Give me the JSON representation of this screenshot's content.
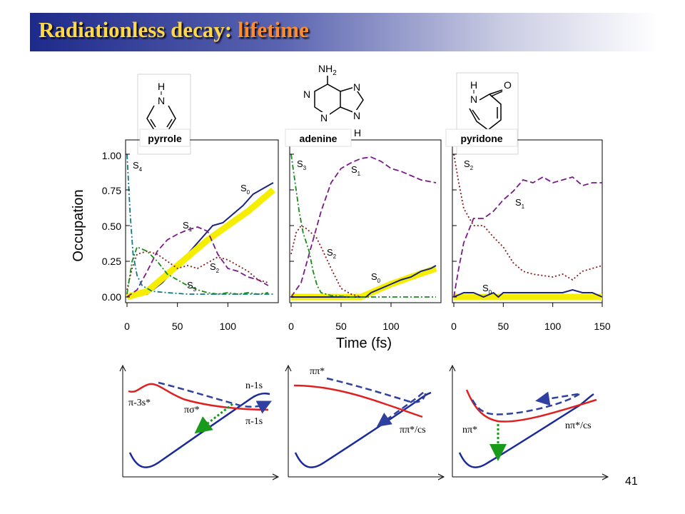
{
  "slide": {
    "title_main": "Radiationless decay:",
    "title_accent": "lifetime",
    "page_number": "41",
    "colors": {
      "title_text": "#ffd84a",
      "title_accent": "#ff8c2a",
      "title_band": "#1e2a8a",
      "potential_upper": "#e02020",
      "potential_ground": "#1a2a9a",
      "path_dashed": "#3040a0",
      "arrow_green": "#1a9a1a"
    }
  },
  "molecules": {
    "pyrrole": {
      "H": "H",
      "N": "N"
    },
    "adenine": {
      "NH2": "NH",
      "sub2": "2",
      "N": "N",
      "H": "H"
    },
    "pyridone": {
      "H": "H",
      "N": "N",
      "O": "O"
    }
  },
  "shared_axes": {
    "ylabel": "Occupation",
    "xlabel": "Time (fs)",
    "yticks": [
      "0.00",
      "0.25",
      "0.50",
      "0.75",
      "1.00"
    ]
  },
  "chart_data": [
    {
      "type": "line",
      "molecule": "pyrrole",
      "xticks": [
        "0",
        "50",
        "100"
      ],
      "xlim": [
        0,
        150
      ],
      "ylim": [
        0,
        1.05
      ],
      "state_labels": [
        {
          "state": "S",
          "sub": "4"
        },
        {
          "state": "S",
          "sub": "0"
        },
        {
          "state": "S",
          "sub": "1"
        },
        {
          "state": "S",
          "sub": "2"
        },
        {
          "state": "S",
          "sub": "3"
        }
      ],
      "series": [
        {
          "key": "S0",
          "color": "#1a237e",
          "style": "solid",
          "x": [
            0,
            20,
            35,
            45,
            55,
            65,
            75,
            85,
            95,
            105,
            115,
            125,
            135,
            145
          ],
          "y": [
            0,
            0.02,
            0.1,
            0.18,
            0.26,
            0.34,
            0.42,
            0.5,
            0.52,
            0.58,
            0.64,
            0.72,
            0.76,
            0.8
          ]
        },
        {
          "key": "S0-band",
          "color": "#f5ee00",
          "style": "band",
          "x": [
            0,
            20,
            40,
            60,
            80,
            100,
            120,
            140,
            145
          ],
          "y": [
            0,
            0.04,
            0.16,
            0.28,
            0.4,
            0.5,
            0.6,
            0.72,
            0.75
          ]
        },
        {
          "key": "S1",
          "color": "#7a1a8a",
          "style": "dashed",
          "x": [
            0,
            10,
            20,
            30,
            40,
            50,
            60,
            70,
            80,
            90,
            100,
            110,
            120,
            130,
            140
          ],
          "y": [
            0,
            0.05,
            0.18,
            0.32,
            0.4,
            0.44,
            0.47,
            0.49,
            0.46,
            0.3,
            0.2,
            0.18,
            0.14,
            0.12,
            0.08
          ]
        },
        {
          "key": "S2",
          "color": "#8a1a1a",
          "style": "dotted",
          "x": [
            0,
            5,
            10,
            20,
            30,
            40,
            50,
            60,
            70,
            80,
            90,
            100,
            110,
            120,
            130,
            140
          ],
          "y": [
            0.05,
            0.2,
            0.3,
            0.32,
            0.3,
            0.25,
            0.2,
            0.22,
            0.2,
            0.24,
            0.28,
            0.26,
            0.22,
            0.18,
            0.12,
            0.1
          ]
        },
        {
          "key": "S3",
          "color": "#1a8a1a",
          "style": "dashdot",
          "x": [
            0,
            5,
            10,
            20,
            30,
            40,
            50,
            60,
            70,
            80,
            90,
            100,
            110,
            120,
            130,
            140
          ],
          "y": [
            0.02,
            0.25,
            0.35,
            0.32,
            0.25,
            0.16,
            0.12,
            0.08,
            0.05,
            0.03,
            0.02,
            0.03,
            0.02,
            0.03,
            0.02,
            0.03
          ]
        },
        {
          "key": "S4",
          "color": "#0f7a8a",
          "style": "dashdot",
          "x": [
            0,
            3,
            6,
            10,
            15,
            25,
            40,
            60,
            80,
            100,
            120,
            145
          ],
          "y": [
            1.0,
            0.6,
            0.3,
            0.15,
            0.08,
            0.04,
            0.03,
            0.02,
            0.02,
            0.02,
            0.02,
            0.02
          ]
        }
      ]
    },
    {
      "type": "line",
      "molecule": "adenine",
      "xticks": [
        "0",
        "50",
        "100"
      ],
      "xlim": [
        0,
        150
      ],
      "ylim": [
        0,
        1.05
      ],
      "state_labels": [
        {
          "state": "S",
          "sub": "3"
        },
        {
          "state": "S",
          "sub": "1"
        },
        {
          "state": "S",
          "sub": "2"
        },
        {
          "state": "S",
          "sub": "0"
        }
      ],
      "series": [
        {
          "key": "S0-band",
          "color": "#f5ee00",
          "style": "band",
          "x": [
            0,
            70,
            80,
            100,
            120,
            145
          ],
          "y": [
            0,
            0,
            0.03,
            0.09,
            0.14,
            0.2
          ]
        },
        {
          "key": "S0",
          "color": "#1a237e",
          "style": "solid",
          "x": [
            0,
            75,
            80,
            90,
            100,
            110,
            120,
            130,
            140,
            145
          ],
          "y": [
            0,
            0,
            0.03,
            0.06,
            0.09,
            0.12,
            0.14,
            0.18,
            0.2,
            0.22
          ]
        },
        {
          "key": "S1",
          "color": "#7a1a8a",
          "style": "dashed",
          "x": [
            0,
            10,
            20,
            30,
            40,
            50,
            60,
            70,
            80,
            90,
            100,
            110,
            120,
            130,
            145
          ],
          "y": [
            0,
            0.1,
            0.35,
            0.6,
            0.8,
            0.9,
            0.94,
            0.97,
            0.98,
            0.95,
            0.9,
            0.88,
            0.85,
            0.82,
            0.8
          ]
        },
        {
          "key": "S2",
          "color": "#8a1a1a",
          "style": "dotted",
          "x": [
            0,
            5,
            10,
            15,
            20,
            25,
            30,
            40,
            50,
            60,
            70
          ],
          "y": [
            0.3,
            0.45,
            0.5,
            0.48,
            0.45,
            0.42,
            0.35,
            0.2,
            0.06,
            0.02,
            0
          ]
        },
        {
          "key": "S3",
          "color": "#1a8a1a",
          "style": "dashdot",
          "x": [
            0,
            3,
            8,
            12,
            18,
            22,
            26,
            30,
            40,
            60,
            145
          ],
          "y": [
            1.0,
            0.85,
            0.6,
            0.45,
            0.32,
            0.18,
            0.08,
            0.03,
            0.01,
            0,
            0
          ]
        }
      ]
    },
    {
      "type": "line",
      "molecule": "pyridone",
      "xticks": [
        "0",
        "50",
        "100",
        "150"
      ],
      "xlim": [
        0,
        150
      ],
      "ylim": [
        0,
        1.05
      ],
      "state_labels": [
        {
          "state": "S",
          "sub": "2"
        },
        {
          "state": "S",
          "sub": "1"
        },
        {
          "state": "S",
          "sub": "0"
        }
      ],
      "series": [
        {
          "key": "S0-band",
          "color": "#f5ee00",
          "style": "band",
          "x": [
            0,
            150
          ],
          "y": [
            0,
            0
          ]
        },
        {
          "key": "S0",
          "color": "#1a237e",
          "style": "solid",
          "x": [
            0,
            10,
            20,
            30,
            40,
            45,
            50,
            60,
            70,
            80,
            90,
            100,
            110,
            120,
            130,
            140,
            150
          ],
          "y": [
            0,
            0.03,
            0.03,
            0,
            0.03,
            0,
            0.03,
            0.03,
            0.03,
            0.03,
            0.03,
            0.03,
            0.03,
            0.05,
            0.03,
            0.03,
            0
          ]
        },
        {
          "key": "S1",
          "color": "#7a1a8a",
          "style": "dashed",
          "x": [
            0,
            5,
            10,
            20,
            30,
            40,
            50,
            60,
            70,
            80,
            90,
            100,
            110,
            120,
            130,
            140,
            150
          ],
          "y": [
            0,
            0.2,
            0.38,
            0.55,
            0.55,
            0.6,
            0.68,
            0.74,
            0.82,
            0.8,
            0.84,
            0.8,
            0.82,
            0.84,
            0.78,
            0.8,
            0.8
          ]
        },
        {
          "key": "S2",
          "color": "#8a1a1a",
          "style": "dotted",
          "x": [
            0,
            5,
            10,
            20,
            30,
            40,
            50,
            60,
            70,
            80,
            90,
            100,
            110,
            120,
            130,
            140,
            150
          ],
          "y": [
            1.0,
            0.8,
            0.62,
            0.5,
            0.5,
            0.42,
            0.35,
            0.24,
            0.18,
            0.16,
            0.15,
            0.14,
            0.16,
            0.12,
            0.18,
            0.2,
            0.22
          ]
        }
      ]
    }
  ],
  "potential_panels": [
    {
      "labels": {
        "pi3s": "π-3s*",
        "pisigma": "πσ*",
        "n1s": "n-1s",
        "pi1s": "π-1s"
      }
    },
    {
      "labels": {
        "pipi": "ππ*",
        "pipics": "ππ*/cs"
      }
    },
    {
      "labels": {
        "npi": "nπ*",
        "npics": "nπ*/cs"
      }
    }
  ]
}
